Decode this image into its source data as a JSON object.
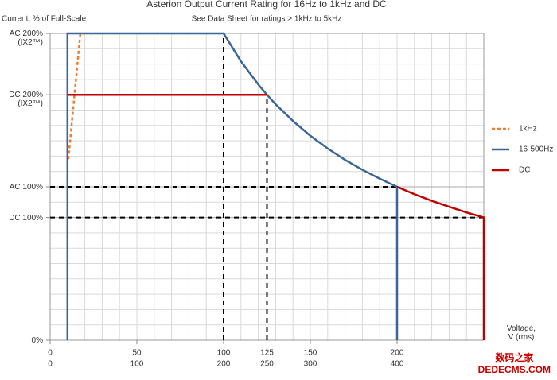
{
  "chart_data": {
    "type": "line",
    "title": "Asterion Output Current Rating for 16Hz to 1kHz and DC",
    "subtitle": "See Data Sheet for ratings > 1kHz to 5kHz",
    "y_label": "Current, % of Full-Scale",
    "x_label": "Voltage,\nV (rms)",
    "watermark": "数码之家\nDEDECMS.COM",
    "xlim": [
      0,
      250
    ],
    "xticks": [
      0,
      50,
      100,
      125,
      150,
      200
    ],
    "x2lim": [
      0,
      500
    ],
    "x2ticks": [
      0,
      100,
      200,
      250,
      300,
      400
    ],
    "ylim": [
      0,
      200
    ],
    "yticks": [
      {
        "value": 0,
        "label": "0%"
      },
      {
        "value": 80,
        "label": "DC 100%"
      },
      {
        "value": 100,
        "label": "AC 100%"
      },
      {
        "value": 160,
        "label": "DC 200%\n(IX2™)"
      },
      {
        "value": 200,
        "label": "AC 200%\n(IX2™)"
      }
    ],
    "grid": true,
    "series": [
      {
        "name": "1kHz",
        "color": "#ed7d31",
        "dashed": true,
        "x": [
          10.5,
          17.4
        ],
        "values": [
          118,
          200
        ]
      },
      {
        "name": "16-500Hz",
        "color": "#3a6598",
        "dashed": false,
        "x": [
          10,
          10,
          100,
          110,
          120,
          125,
          130,
          140,
          150,
          160,
          170,
          180,
          190,
          200,
          200
        ],
        "values": [
          0,
          200,
          200,
          181.8,
          166.7,
          160,
          153.8,
          142.9,
          133.3,
          125,
          117.6,
          111.1,
          105.3,
          100,
          0
        ]
      },
      {
        "name": "DC",
        "color": "#c00000",
        "dashed": false,
        "x": [
          10,
          125,
          null,
          200,
          210,
          220,
          230,
          240,
          250,
          250
        ],
        "values": [
          160,
          160,
          null,
          100,
          95.2,
          90.9,
          87,
          83.3,
          80,
          0
        ]
      }
    ],
    "guides": [
      {
        "x": [
          100,
          100
        ],
        "values": [
          0,
          200
        ]
      },
      {
        "x": [
          125,
          125
        ],
        "values": [
          0,
          160
        ]
      },
      {
        "x": [
          0,
          200
        ],
        "values": [
          100,
          100
        ]
      },
      {
        "x": [
          0,
          250
        ],
        "values": [
          80,
          80
        ]
      }
    ]
  }
}
